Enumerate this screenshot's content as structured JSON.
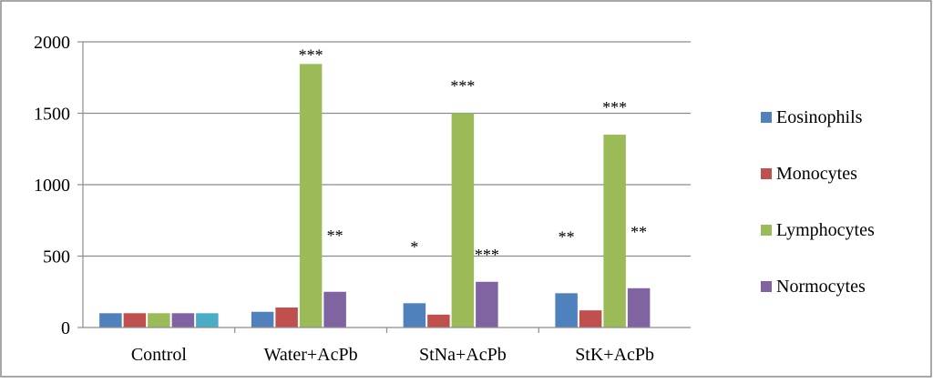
{
  "chart_data": {
    "type": "bar",
    "categories": [
      "Control",
      "Water+AcPb",
      "StNa+AcPb",
      "StK+AcPb"
    ],
    "series": [
      {
        "name": "Eosinophils",
        "color": "#4F81BD",
        "values": [
          100,
          110,
          170,
          240
        ]
      },
      {
        "name": "Monocytes",
        "color": "#C0504D",
        "values": [
          100,
          140,
          90,
          120
        ]
      },
      {
        "name": "Lymphocytes",
        "color": "#9BBB59",
        "values": [
          100,
          1845,
          1500,
          1350
        ]
      },
      {
        "name": "Normocytes",
        "color": "#8064A2",
        "values": [
          100,
          250,
          320,
          275
        ]
      },
      {
        "name": "",
        "color": "#4BACC6",
        "values": [
          100,
          null,
          null,
          null
        ]
      }
    ],
    "annotations": [
      {
        "category": "Water+AcPb",
        "series": "Lymphocytes",
        "text": "***"
      },
      {
        "category": "Water+AcPb",
        "series": "Normocytes",
        "text": "**"
      },
      {
        "category": "StNa+AcPb",
        "series": "Eosinophils",
        "text": "*"
      },
      {
        "category": "StNa+AcPb",
        "series": "Lymphocytes",
        "text": "***"
      },
      {
        "category": "StNa+AcPb",
        "series": "Normocytes",
        "text": "***"
      },
      {
        "category": "StK+AcPb",
        "series": "Eosinophils",
        "text": "**"
      },
      {
        "category": "StK+AcPb",
        "series": "Lymphocytes",
        "text": "***"
      },
      {
        "category": "StK+AcPb",
        "series": "Normocytes",
        "text": "**"
      }
    ],
    "yticks": [
      0,
      500,
      1000,
      1500,
      2000
    ],
    "ylim": [
      0,
      2000
    ],
    "grid": true,
    "legend_position": "right",
    "title": "",
    "xlabel": "",
    "ylabel": ""
  }
}
